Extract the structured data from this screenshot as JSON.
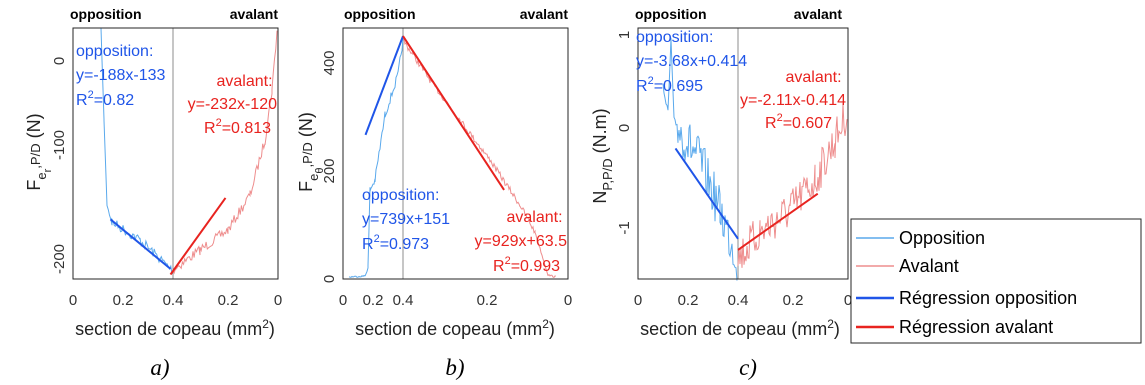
{
  "colors": {
    "opposition": "#1f55e8",
    "avalant": "#e8231f",
    "opposition_raw": "#5aa9ec",
    "avalant_raw": "#ee8d8d",
    "divider": "#8c8c8c"
  },
  "legend": {
    "placement": "right",
    "items": [
      {
        "label": "Opposition",
        "style": "raw-opposition"
      },
      {
        "label": "Avalant",
        "style": "raw-avalant"
      },
      {
        "label": "Régression opposition",
        "style": "fit-opposition"
      },
      {
        "label": "Régression avalant",
        "style": "fit-avalant"
      }
    ]
  },
  "chart_data": [
    {
      "type": "line",
      "panel_label": "a)",
      "left_title": "opposition",
      "right_title": "avalant",
      "xlabel": "section de copeau (mm",
      "xlabel_sup": "2",
      "ylabel_main": "F",
      "ylabel_sub": "e",
      "ylabel_sub2": "r",
      "ylabel_tail": ",P/D",
      "ylabel_unit": " (N)",
      "x_ticks": [
        "0",
        "0.2",
        "0.4",
        "0.2",
        "0"
      ],
      "y_ticks": [
        {
          "value": 0,
          "label": "0"
        },
        {
          "value": -100,
          "label": "-100"
        },
        {
          "value": -200,
          "label": "-200"
        }
      ],
      "ylim": [
        -215,
        8
      ],
      "x_mirrored_at": 0.4,
      "grid": false,
      "fits": [
        {
          "side": "opposition",
          "x": [
            0.15,
            0.39
          ],
          "y": [
            -162,
            -206
          ]
        },
        {
          "side": "avalant",
          "x": [
            0.39,
            0.6
          ],
          "y": [
            -211,
            -143
          ]
        }
      ],
      "annotations": [
        {
          "series": "opposition",
          "lines": [
            "opposition:",
            "y=-188x-133",
            "R",
            "0.82"
          ]
        },
        {
          "series": "avalant",
          "lines": [
            "avalant:",
            "y=-232x-120",
            "R",
            "0.813"
          ]
        }
      ]
    },
    {
      "type": "line",
      "panel_label": "b)",
      "left_title": "opposition",
      "right_title": "avalant",
      "xlabel": "section de copeau (mm",
      "xlabel_sup": "2",
      "ylabel_main": "F",
      "ylabel_sub": "e",
      "ylabel_sub2": "θ",
      "ylabel_tail": ",P/D",
      "ylabel_unit": " (N)",
      "x_ticks": [
        "0",
        "0.2",
        "0.4",
        "0.2",
        "0"
      ],
      "y_ticks": [
        {
          "value": 0,
          "label": "0"
        },
        {
          "value": 200,
          "label": "200"
        },
        {
          "value": 400,
          "label": "400"
        }
      ],
      "ylim": [
        -5,
        460
      ],
      "x_mirrored_at": 0.4,
      "grid": false,
      "fits": [
        {
          "side": "opposition",
          "x": [
            0.15,
            0.4
          ],
          "y": [
            262,
            445
          ]
        },
        {
          "side": "avalant",
          "x": [
            0.4,
            0.645
          ],
          "y": [
            445,
            160
          ]
        }
      ],
      "annotations": [
        {
          "series": "opposition",
          "lines": [
            "opposition:",
            "y=739x+151",
            "R",
            "0.973"
          ]
        },
        {
          "series": "avalant",
          "lines": [
            "avalant:",
            "y=929x+63.5",
            "R",
            "0.993"
          ]
        }
      ]
    },
    {
      "type": "line",
      "panel_label": "c)",
      "left_title": "opposition",
      "right_title": "avalant",
      "xlabel": "section de copeau (mm",
      "xlabel_sup": "2",
      "ylabel_main": "N",
      "ylabel_sub": "P,P/D",
      "ylabel_sub2": "",
      "ylabel_tail": "",
      "ylabel_unit": " (N.m)",
      "x_ticks": [
        "0",
        "0.2",
        "0.4",
        "0.2",
        "0"
      ],
      "y_ticks": [
        {
          "value": 1,
          "label": "1"
        },
        {
          "value": 0,
          "label": "0"
        },
        {
          "value": -1,
          "label": "-1"
        }
      ],
      "ylim": [
        -1.45,
        1.05
      ],
      "x_mirrored_at": 0.4,
      "grid": false,
      "fits": [
        {
          "side": "opposition",
          "x": [
            0.15,
            0.4
          ],
          "y": [
            -0.15,
            -1.05
          ]
        },
        {
          "side": "avalant",
          "x": [
            0.4,
            0.69
          ],
          "y": [
            -1.16,
            -0.6
          ]
        }
      ],
      "annotations": [
        {
          "series": "opposition",
          "lines": [
            "opposition:",
            "y=-3.68x+0.414",
            "R",
            "0.695"
          ]
        },
        {
          "series": "avalant",
          "lines": [
            "avalant:",
            "y=-2.11x-0.414",
            "R",
            "0.607"
          ]
        }
      ]
    }
  ]
}
